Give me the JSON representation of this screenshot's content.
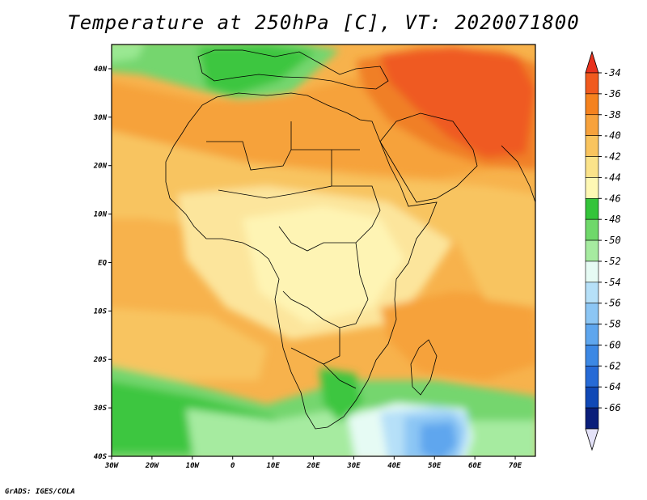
{
  "title": "Temperature at 250hPa [C], VT: 2020071800",
  "credit": "GrADS: IGES/COLA",
  "map": {
    "region": "Africa and Middle East",
    "lon_range": [
      -30,
      75
    ],
    "lat_range": [
      -40,
      45
    ],
    "x_ticks": [
      {
        "value": -30,
        "label": "30W"
      },
      {
        "value": -20,
        "label": "20W"
      },
      {
        "value": -10,
        "label": "10W"
      },
      {
        "value": 0,
        "label": "0"
      },
      {
        "value": 10,
        "label": "10E"
      },
      {
        "value": 20,
        "label": "20E"
      },
      {
        "value": 30,
        "label": "30E"
      },
      {
        "value": 40,
        "label": "40E"
      },
      {
        "value": 50,
        "label": "50E"
      },
      {
        "value": 60,
        "label": "60E"
      },
      {
        "value": 70,
        "label": "70E"
      }
    ],
    "y_ticks": [
      {
        "value": 40,
        "label": "40N"
      },
      {
        "value": 30,
        "label": "30N"
      },
      {
        "value": 20,
        "label": "20N"
      },
      {
        "value": 10,
        "label": "10N"
      },
      {
        "value": 0,
        "label": "EQ"
      },
      {
        "value": -10,
        "label": "10S"
      },
      {
        "value": -20,
        "label": "20S"
      },
      {
        "value": -30,
        "label": "30S"
      },
      {
        "value": -40,
        "label": "40S"
      }
    ]
  },
  "colorbar": {
    "levels": [
      {
        "label": "-34",
        "color": "#f05a1e"
      },
      {
        "label": "-36",
        "color": "#f5821e"
      },
      {
        "label": "-38",
        "color": "#f7a23c"
      },
      {
        "label": "-40",
        "color": "#f9c45e"
      },
      {
        "label": "-42",
        "color": "#fbe38a"
      },
      {
        "label": "-44",
        "color": "#fef8b4"
      },
      {
        "label": "-46",
        "color": "#34c43a"
      },
      {
        "label": "-48",
        "color": "#6fd86a"
      },
      {
        "label": "-50",
        "color": "#a6eba0"
      },
      {
        "label": "-52",
        "color": "#e6fbf4"
      },
      {
        "label": "-54",
        "color": "#b6e0f8"
      },
      {
        "label": "-56",
        "color": "#8cc6f4"
      },
      {
        "label": "-58",
        "color": "#5ea6ee"
      },
      {
        "label": "-60",
        "color": "#3c88e4"
      },
      {
        "label": "-62",
        "color": "#266ad6"
      },
      {
        "label": "-64",
        "color": "#1048b6"
      },
      {
        "label": "-66",
        "color": "#0a1e7a"
      }
    ],
    "top_triangle_color": "#e8321e",
    "bottom_triangle_color": "#e4e2f8"
  }
}
